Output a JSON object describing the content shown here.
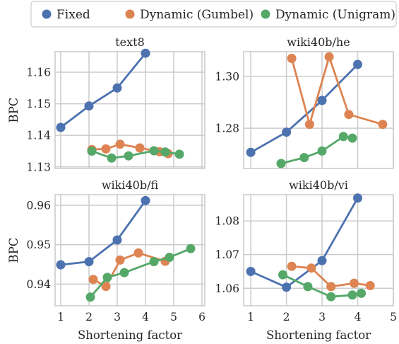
{
  "legend": {
    "items": [
      {
        "label": "Fixed",
        "color": "#4c72b0"
      },
      {
        "label": "Dynamic (Gumbel)",
        "color": "#dd8452"
      },
      {
        "label": "Dynamic (Unigram)",
        "color": "#55a868"
      }
    ],
    "placement": "top-center"
  },
  "chart_data": [
    {
      "type": "line",
      "title": "text8",
      "xlabel": "",
      "ylabel": "BPC",
      "xlim": [
        0.8,
        6.1
      ],
      "ylim": [
        1.1295,
        1.1665
      ],
      "xticks": [
        1,
        2,
        3,
        4,
        5,
        6
      ],
      "xtick_labels_visible": false,
      "yticks": [
        1.13,
        1.14,
        1.15,
        1.16
      ],
      "ytick_labels": [
        "1.13",
        "1.14",
        "1.15",
        "1.16"
      ],
      "grid": true,
      "series": [
        {
          "name": "Fixed",
          "color": "#4c72b0",
          "points": [
            [
              1,
              1.1425
            ],
            [
              2,
              1.1493
            ],
            [
              3,
              1.155
            ],
            [
              4,
              1.166
            ]
          ]
        },
        {
          "name": "Dynamic (Gumbel)",
          "color": "#dd8452",
          "points": [
            [
              2.1,
              1.1355
            ],
            [
              2.6,
              1.1357
            ],
            [
              3.1,
              1.1372
            ],
            [
              3.8,
              1.136
            ],
            [
              4.5,
              1.1348
            ],
            [
              4.8,
              1.1342
            ]
          ]
        },
        {
          "name": "Dynamic (Unigram)",
          "color": "#55a868",
          "points": [
            [
              2.1,
              1.135
            ],
            [
              2.8,
              1.1328
            ],
            [
              3.4,
              1.1335
            ],
            [
              4.3,
              1.1351
            ],
            [
              4.7,
              1.1347
            ],
            [
              5.2,
              1.134
            ]
          ]
        }
      ]
    },
    {
      "type": "line",
      "title": "wiki40b/he",
      "xlabel": "",
      "ylabel": "",
      "xlim": [
        0.8,
        5.0
      ],
      "ylim": [
        1.2645,
        1.3095
      ],
      "xticks": [
        1,
        2,
        3,
        4,
        5
      ],
      "xtick_labels_visible": false,
      "yticks": [
        1.28,
        1.3
      ],
      "ytick_labels": [
        "1.28",
        "1.30"
      ],
      "grid": true,
      "series": [
        {
          "name": "Fixed",
          "color": "#4c72b0",
          "points": [
            [
              1,
              1.2707
            ],
            [
              2,
              1.2785
            ],
            [
              3,
              1.2907
            ],
            [
              4,
              1.3046
            ]
          ]
        },
        {
          "name": "Dynamic (Gumbel)",
          "color": "#dd8452",
          "points": [
            [
              2.15,
              1.3069
            ],
            [
              2.65,
              1.2815
            ],
            [
              3.2,
              1.3075
            ],
            [
              3.75,
              1.2853
            ],
            [
              4.7,
              1.2815
            ]
          ]
        },
        {
          "name": "Dynamic (Unigram)",
          "color": "#55a868",
          "points": [
            [
              1.85,
              1.2664
            ],
            [
              2.5,
              1.2687
            ],
            [
              3.0,
              1.2712
            ],
            [
              3.6,
              1.2768
            ],
            [
              3.85,
              1.2762
            ]
          ]
        }
      ]
    },
    {
      "type": "line",
      "title": "wiki40b/fi",
      "xlabel": "Shortening factor",
      "ylabel": "BPC",
      "xlim": [
        0.8,
        6.1
      ],
      "ylim": [
        0.9345,
        0.9627
      ],
      "xticks": [
        1,
        2,
        3,
        4,
        5,
        6
      ],
      "xtick_labels": [
        "1",
        "2",
        "3",
        "4",
        "5",
        "6"
      ],
      "yticks": [
        0.94,
        0.95,
        0.96
      ],
      "ytick_labels": [
        "0.94",
        "0.95",
        "0.96"
      ],
      "grid": true,
      "series": [
        {
          "name": "Fixed",
          "color": "#4c72b0",
          "points": [
            [
              1,
              0.9449
            ],
            [
              2,
              0.9457
            ],
            [
              3,
              0.9512
            ],
            [
              4,
              0.9612
            ]
          ]
        },
        {
          "name": "Dynamic (Gumbel)",
          "color": "#dd8452",
          "points": [
            [
              2.15,
              0.9412
            ],
            [
              2.6,
              0.9394
            ],
            [
              3.1,
              0.9461
            ],
            [
              3.75,
              0.9479
            ],
            [
              4.7,
              0.9458
            ]
          ]
        },
        {
          "name": "Dynamic (Unigram)",
          "color": "#55a868",
          "points": [
            [
              2.05,
              0.9367
            ],
            [
              2.65,
              0.9417
            ],
            [
              3.25,
              0.9429
            ],
            [
              4.3,
              0.9457
            ],
            [
              4.85,
              0.9468
            ],
            [
              5.6,
              0.949
            ]
          ]
        }
      ]
    },
    {
      "type": "line",
      "title": "wiki40b/vi",
      "xlabel": "Shortening factor",
      "ylabel": "",
      "xlim": [
        0.8,
        5.0
      ],
      "ylim": [
        1.0548,
        1.0878
      ],
      "xticks": [
        1,
        2,
        3,
        4,
        5
      ],
      "xtick_labels": [
        "1",
        "2",
        "3",
        "4",
        "5"
      ],
      "yticks": [
        1.06,
        1.07,
        1.08
      ],
      "ytick_labels": [
        "1.06",
        "1.07",
        "1.08"
      ],
      "grid": true,
      "series": [
        {
          "name": "Fixed",
          "color": "#4c72b0",
          "points": [
            [
              1,
              1.065
            ],
            [
              2,
              1.0603
            ],
            [
              3,
              1.0682
            ],
            [
              4,
              1.0868
            ]
          ]
        },
        {
          "name": "Dynamic (Gumbel)",
          "color": "#dd8452",
          "points": [
            [
              2.15,
              1.0665
            ],
            [
              2.7,
              1.066
            ],
            [
              3.25,
              1.0605
            ],
            [
              3.9,
              1.0615
            ],
            [
              4.35,
              1.0608
            ]
          ]
        },
        {
          "name": "Dynamic (Unigram)",
          "color": "#55a868",
          "points": [
            [
              1.9,
              1.064
            ],
            [
              2.6,
              1.0605
            ],
            [
              3.25,
              1.0575
            ],
            [
              3.85,
              1.058
            ],
            [
              4.1,
              1.0585
            ]
          ]
        }
      ]
    }
  ]
}
